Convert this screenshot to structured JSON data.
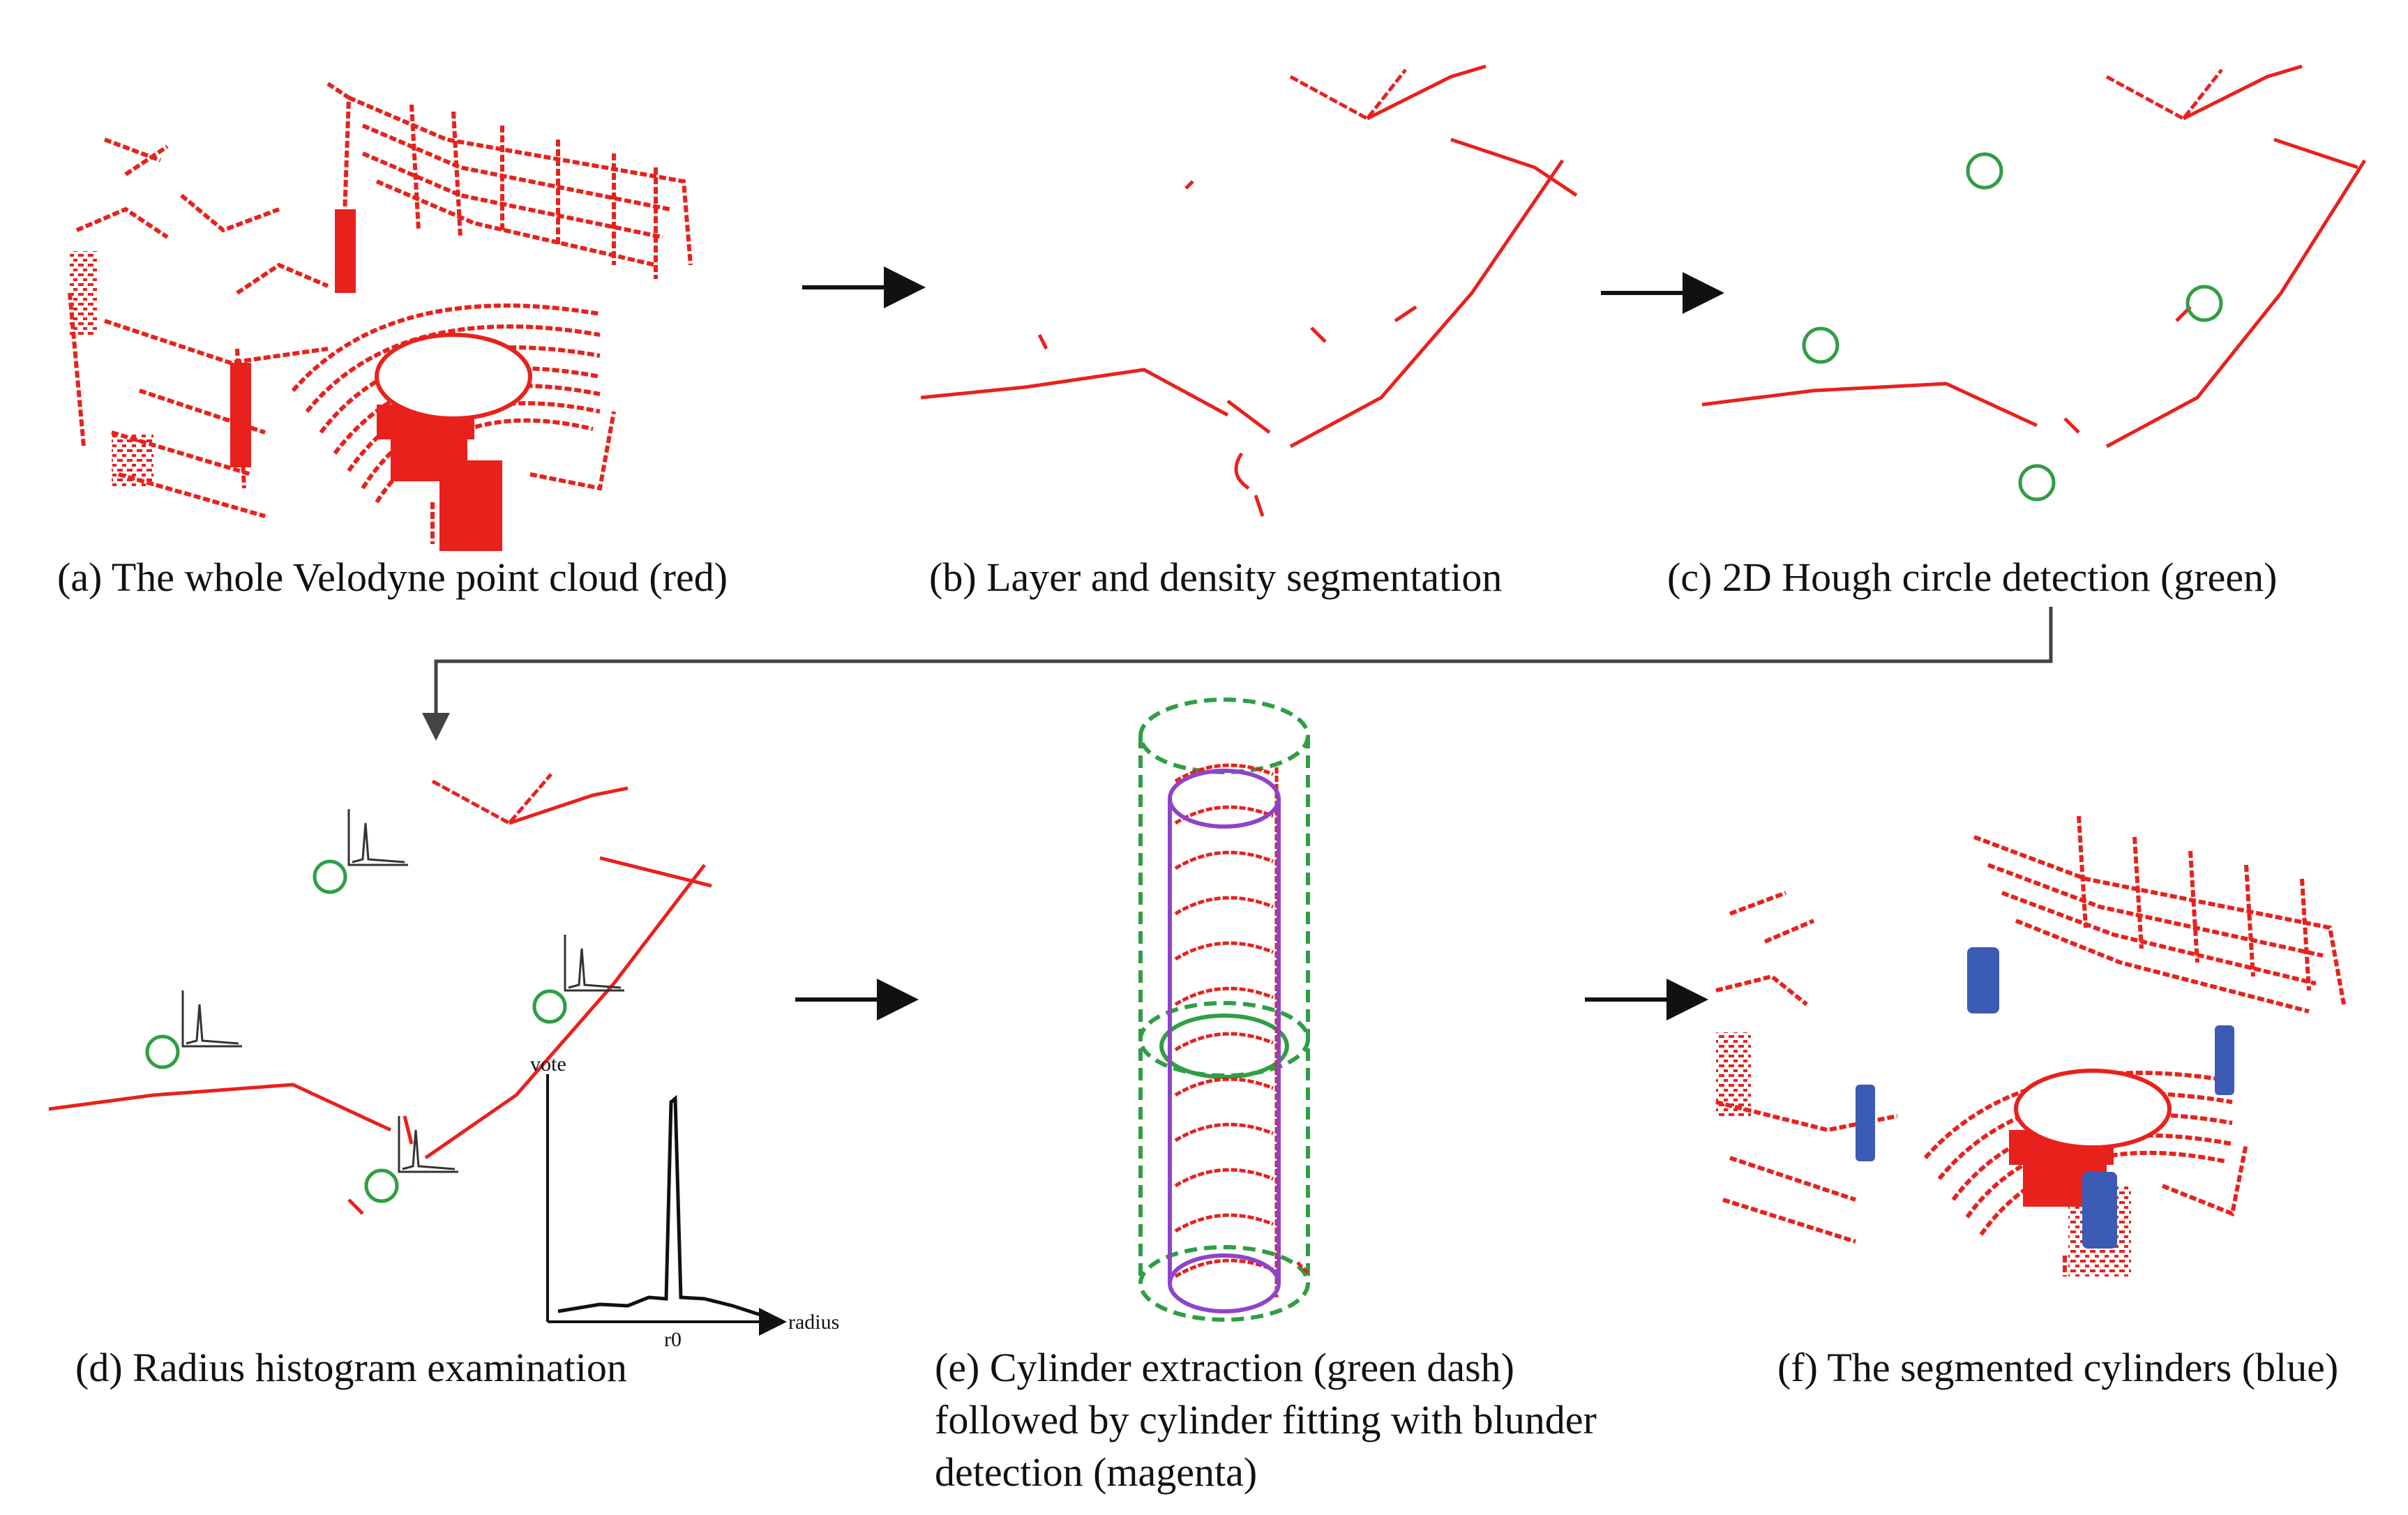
{
  "colors": {
    "point_cloud": "#e8211c",
    "hough_circle": "#2f9e44",
    "cylinder_fit": "#8e44c9",
    "segmented": "#3b5bb5",
    "arrow": "#111111"
  },
  "panels": {
    "a": {
      "caption": "(a) The whole Velodyne point cloud (red)"
    },
    "b": {
      "caption": "(b) Layer and density segmentation"
    },
    "c": {
      "caption": "(c) 2D Hough circle detection (green)"
    },
    "d": {
      "caption": "(d) Radius histogram examination",
      "hist_ylabel": "vote",
      "hist_xlabel": "radius",
      "hist_tick": "r0"
    },
    "e": {
      "caption_lines": [
        "(e) Cylinder extraction (green dash)",
        "followed by cylinder fitting with blunder",
        "detection (magenta)"
      ]
    },
    "f": {
      "caption": "(f) The segmented cylinders (blue)"
    }
  }
}
